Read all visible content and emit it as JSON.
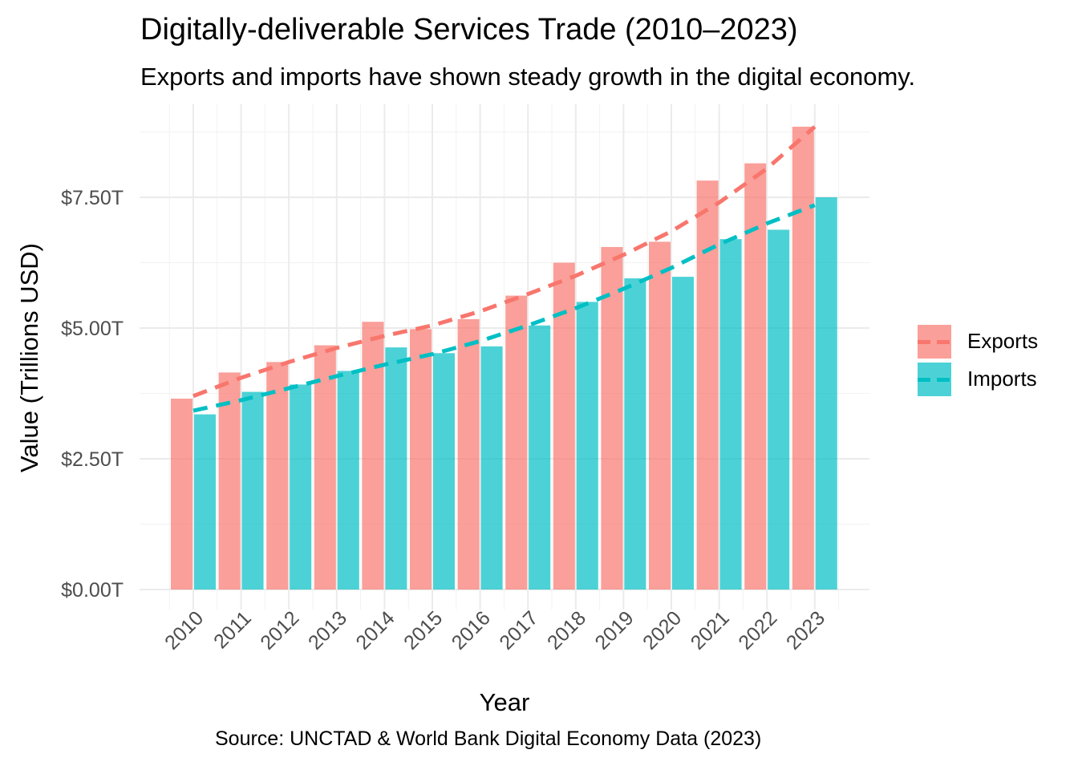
{
  "chart_data": {
    "type": "bar",
    "title": "Digitally-deliverable Services Trade (2010–2023)",
    "subtitle": "Exports and imports have shown steady growth in the digital economy.",
    "caption": "Source: UNCTAD & World Bank Digital Economy Data (2023)",
    "xlabel": "Year",
    "ylabel": "Value (Trillions USD)",
    "categories": [
      "2010",
      "2011",
      "2012",
      "2013",
      "2014",
      "2015",
      "2016",
      "2017",
      "2018",
      "2019",
      "2020",
      "2021",
      "2022",
      "2023"
    ],
    "ylim": [
      0,
      9.2
    ],
    "yticks": [
      0,
      2.5,
      5,
      7.5
    ],
    "ytick_labels": [
      "$0.00T",
      "$2.50T",
      "$5.00T",
      "$7.50T"
    ],
    "series": [
      {
        "name": "Exports",
        "color": "#F8766D",
        "values": [
          3.65,
          4.15,
          4.35,
          4.67,
          5.12,
          4.98,
          5.17,
          5.62,
          6.25,
          6.55,
          6.65,
          7.82,
          8.15,
          8.85
        ],
        "trend": [
          3.7,
          4.05,
          4.35,
          4.62,
          4.85,
          5.05,
          5.32,
          5.65,
          6.0,
          6.4,
          6.85,
          7.4,
          8.05,
          8.85
        ]
      },
      {
        "name": "Imports",
        "color": "#00BFC4",
        "values": [
          3.35,
          3.78,
          3.92,
          4.18,
          4.63,
          4.52,
          4.65,
          5.05,
          5.5,
          5.95,
          5.98,
          6.7,
          6.88,
          7.5
        ]
      }
    ],
    "imports_trend": [
      3.42,
      3.62,
      3.85,
      4.08,
      4.3,
      4.5,
      4.75,
      5.05,
      5.38,
      5.75,
      6.15,
      6.6,
      7.0,
      7.35
    ],
    "grid": true,
    "legend_position": "right"
  }
}
